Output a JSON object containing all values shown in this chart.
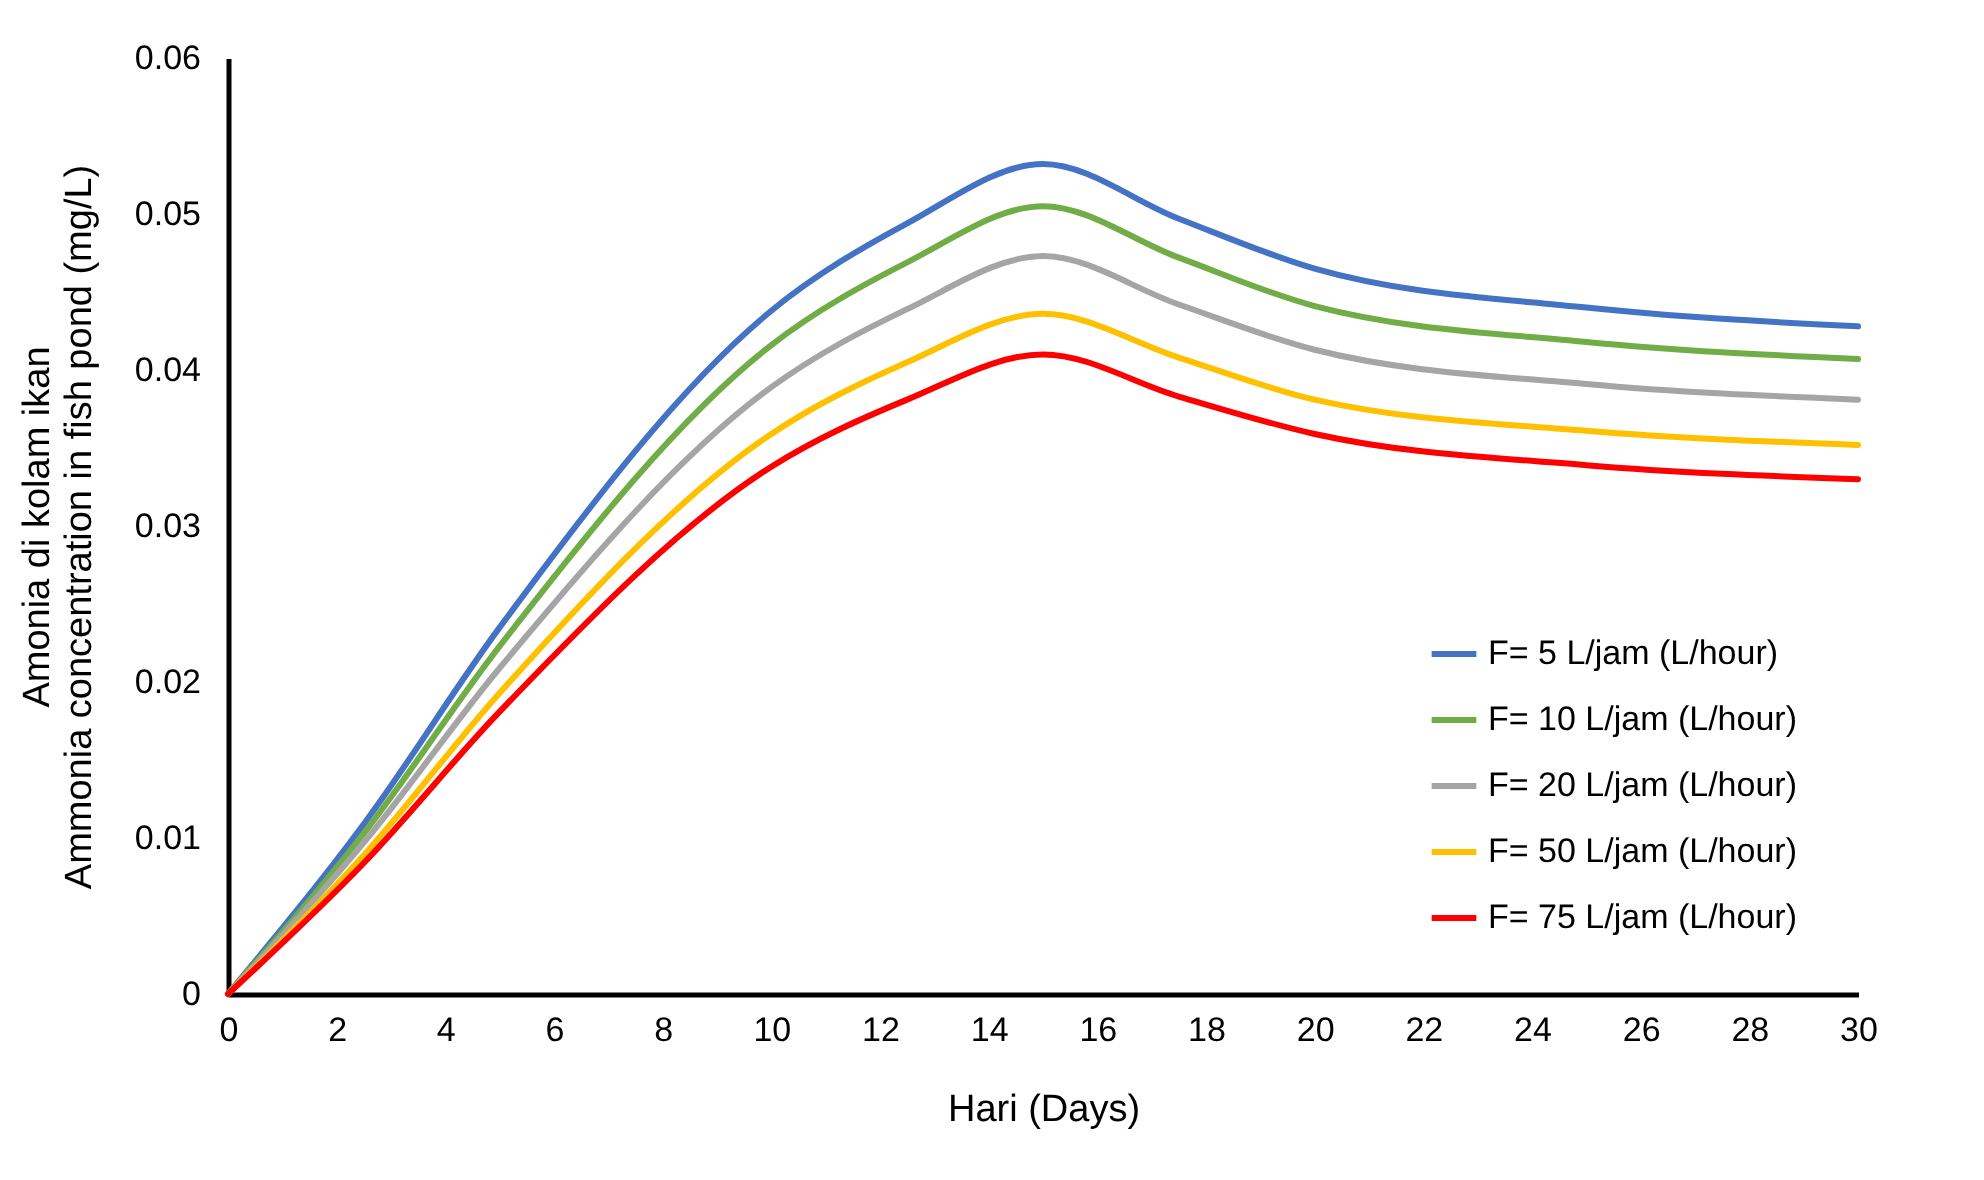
{
  "chart_data": {
    "type": "line",
    "xlabel": "Hari (Days)",
    "ylabel": "Amonia di kolam ikan\nAmmonia concentration in fish pond (mg/L)",
    "x": [
      0,
      2.5,
      5,
      10,
      12.5,
      15,
      17.5,
      20,
      25,
      30
    ],
    "series": [
      {
        "name": "F= 5 L/jam (L/hour)",
        "color": "#4472c4",
        "values": [
          0,
          0.0109,
          0.0235,
          0.0438,
          0.0494,
          0.0532,
          0.0497,
          0.0465,
          0.044,
          0.0428
        ]
      },
      {
        "name": "F= 10 L/jam (L/hour)",
        "color": "#70ad47",
        "values": [
          0,
          0.0103,
          0.0223,
          0.0416,
          0.0469,
          0.0505,
          0.0472,
          0.0441,
          0.0418,
          0.0407
        ]
      },
      {
        "name": "F= 20 L/jam (L/hour)",
        "color": "#a5a5a5",
        "values": [
          0,
          0.0097,
          0.0209,
          0.0389,
          0.0439,
          0.0473,
          0.0442,
          0.0413,
          0.0391,
          0.0381
        ]
      },
      {
        "name": "F= 50 L/jam (L/hour)",
        "color": "#ffc000",
        "values": [
          0,
          0.0089,
          0.0193,
          0.0359,
          0.0405,
          0.0436,
          0.0408,
          0.0381,
          0.0361,
          0.0352
        ]
      },
      {
        "name": "F= 75 L/jam (L/hour)",
        "color": "#ff0000",
        "values": [
          0,
          0.0084,
          0.0181,
          0.0338,
          0.0381,
          0.041,
          0.0383,
          0.0359,
          0.0339,
          0.033
        ]
      }
    ],
    "xlim": [
      0,
      30
    ],
    "xticks": [
      0,
      2,
      4,
      6,
      8,
      10,
      12,
      14,
      16,
      18,
      20,
      22,
      24,
      26,
      28,
      30
    ],
    "ylim": [
      0,
      0.06
    ],
    "yticks": [
      0,
      0.01,
      0.02,
      0.03,
      0.04,
      0.05,
      0.06
    ],
    "grid": false,
    "legend": "bottom right",
    "marker": "none",
    "line_style": "solid"
  }
}
